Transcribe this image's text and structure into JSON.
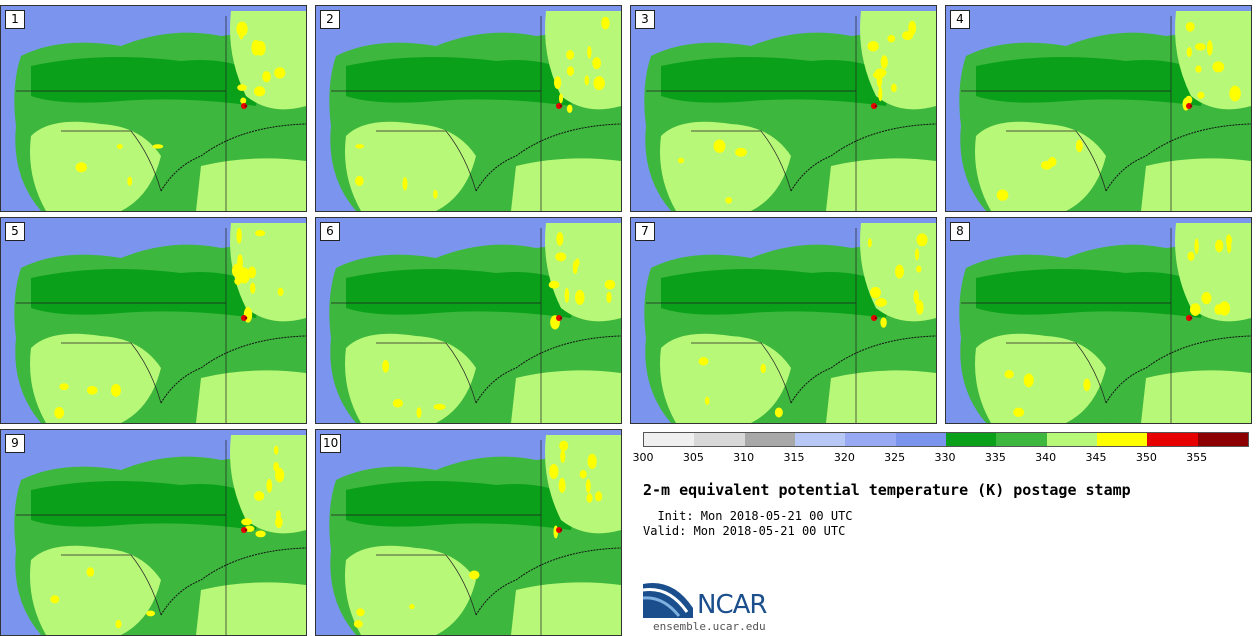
{
  "panels": [
    {
      "label": "1"
    },
    {
      "label": "2"
    },
    {
      "label": "3"
    },
    {
      "label": "4"
    },
    {
      "label": "5"
    },
    {
      "label": "6"
    },
    {
      "label": "7"
    },
    {
      "label": "8"
    },
    {
      "label": "9"
    },
    {
      "label": "10"
    }
  ],
  "colorbar": {
    "colors": [
      "#f0f0f0",
      "#d8d8d8",
      "#a8a8a8",
      "#b8c8f6",
      "#97aaf3",
      "#7b95ee",
      "#0aa01a",
      "#3db73d",
      "#b8f878",
      "#ffff00",
      "#e60000",
      "#8c0000"
    ],
    "ticks": [
      "300",
      "305",
      "310",
      "315",
      "320",
      "325",
      "330",
      "335",
      "340",
      "345",
      "350",
      "355"
    ]
  },
  "title": "2-m equivalent potential temperature (K) postage stamp",
  "init": "  Init: Mon 2018-05-21 00 UTC",
  "valid": "Valid: Mon 2018-05-21 00 UTC",
  "logo": {
    "text": "NCAR",
    "site": "ensemble.ucar.edu",
    "color": "#1a4e8c"
  },
  "map_colors": {
    "ocean_cool": "#7b95ee",
    "green_dark": "#0aa01a",
    "green_mid": "#3db73d",
    "green_light": "#b8f878",
    "yellow": "#ffff00",
    "red": "#e60000",
    "dark_red": "#8c0000"
  }
}
